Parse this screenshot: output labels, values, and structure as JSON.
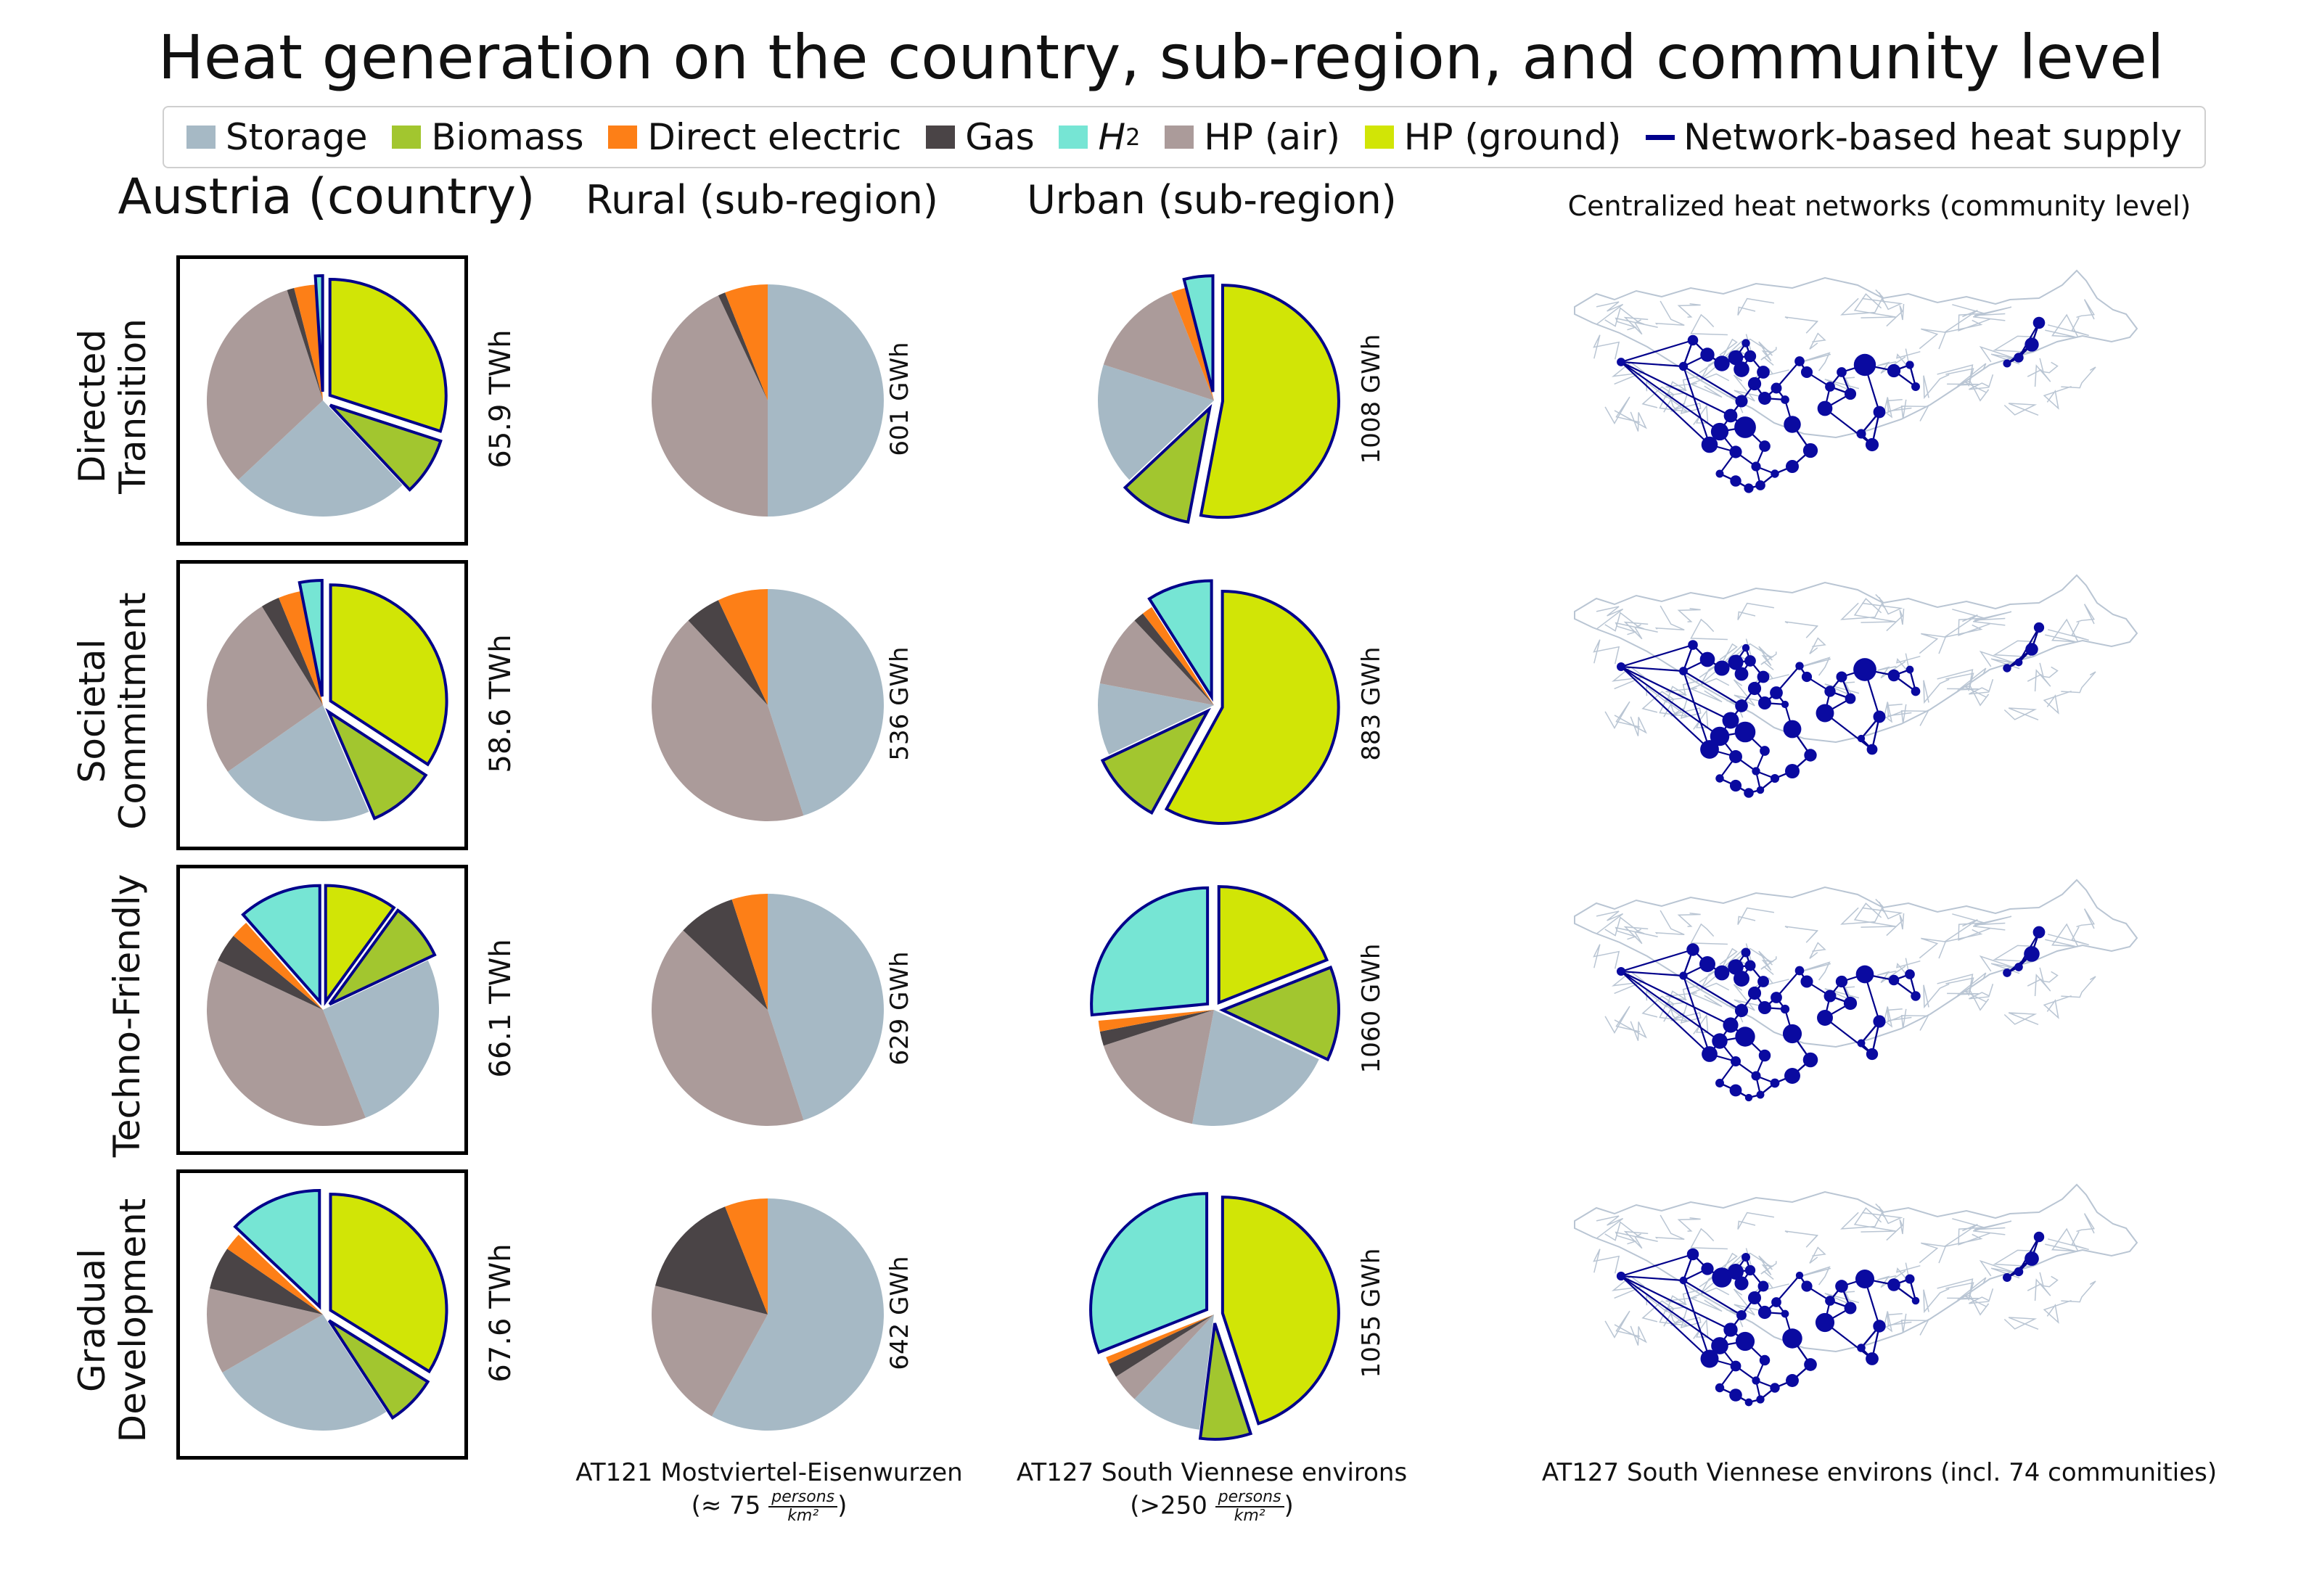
{
  "title": "Heat generation on the country, sub-region, and community level",
  "colors": {
    "Storage": "#a6b9c5",
    "Biomass": "#a2c62f",
    "Direct electric": "#fd7f17",
    "Gas": "#4a4446",
    "H2": "#76e5d4",
    "HP (air)": "#ab9b9a",
    "HP (ground)": "#d1e506",
    "network_outline": "#00008b",
    "network_node": "#0a0aa0",
    "region_border": "#b9c5d3"
  },
  "legend": [
    {
      "key": "Storage",
      "label": "Storage",
      "type": "patch",
      "color": "#a6b9c5"
    },
    {
      "key": "Biomass",
      "label": "Biomass",
      "type": "patch",
      "color": "#a2c62f"
    },
    {
      "key": "Direct electric",
      "label": "Direct electric",
      "type": "patch",
      "color": "#fd7f17"
    },
    {
      "key": "Gas",
      "label": "Gas",
      "type": "patch",
      "color": "#4a4446"
    },
    {
      "key": "H2",
      "label": "H",
      "sub": "2",
      "type": "patch",
      "color": "#76e5d4"
    },
    {
      "key": "HP (air)",
      "label": "HP (air)",
      "type": "patch",
      "color": "#ab9b9a"
    },
    {
      "key": "HP (ground)",
      "label": "HP (ground)",
      "type": "patch",
      "color": "#d1e506"
    },
    {
      "key": "network",
      "label": "Network-based heat supply",
      "type": "line",
      "color": "#00008b"
    }
  ],
  "columns": {
    "country": "Austria (country)",
    "rural": "Rural (sub-region)",
    "urban": "Urban (sub-region)",
    "networks": "Centralized heat networks (community level)"
  },
  "footnotes": {
    "rural": {
      "text": "AT121 Mostviertel-Eisenwurzen",
      "prefix": "(≈ 75 ",
      "num": "persons",
      "den": "km²",
      "suffix": ")"
    },
    "urban": {
      "text": "AT127 South Viennese environs",
      "prefix": "(>250 ",
      "num": "persons",
      "den": "km²",
      "suffix": ")"
    },
    "networks": {
      "text": "AT127 South Viennese environs (incl. 74 communities)"
    }
  },
  "scenarios": [
    {
      "label": "Directed Transition",
      "lines": [
        "Directed",
        "Transition"
      ]
    },
    {
      "label": "Societal Commitment",
      "lines": [
        "Societal",
        "Commitment"
      ]
    },
    {
      "label": "Techno-Friendly",
      "lines": [
        "Techno-Friendly"
      ]
    },
    {
      "label": "Gradual Development",
      "lines": [
        "Gradual",
        "Development"
      ]
    }
  ],
  "chart_data": [
    {
      "type": "pie",
      "title": "Austria (country)",
      "slice_order": [
        "HP (ground)",
        "Biomass",
        "Storage",
        "HP (air)",
        "Gas",
        "Direct electric",
        "H2"
      ],
      "network_based": [
        "HP (ground)",
        "Biomass",
        "H2"
      ],
      "panels": [
        {
          "scenario": "Directed Transition",
          "total": "65.9 TWh",
          "values": {
            "HP (ground)": 30,
            "Biomass": 8,
            "Storage": 25,
            "HP (air)": 32,
            "Gas": 1,
            "Direct electric": 3,
            "H2": 1
          }
        },
        {
          "scenario": "Societal Commitment",
          "total": "58.6 TWh",
          "values": {
            "HP (ground)": 33,
            "Biomass": 9,
            "Storage": 21,
            "HP (air)": 25,
            "Gas": 2.5,
            "Direct electric": 3,
            "H2": 3
          }
        },
        {
          "scenario": "Techno-Friendly",
          "total": "66.1 TWh",
          "values": {
            "HP (ground)": 10,
            "Biomass": 8,
            "Storage": 26,
            "HP (air)": 38,
            "Gas": 4,
            "Direct electric": 2.5,
            "H2": 11.5
          }
        },
        {
          "scenario": "Gradual Development",
          "total": "67.6 TWh",
          "values": {
            "HP (ground)": 34,
            "Biomass": 7,
            "Storage": 26,
            "HP (air)": 12,
            "Gas": 6,
            "Direct electric": 2.5,
            "H2": 13
          }
        }
      ]
    },
    {
      "type": "pie",
      "title": "Rural (sub-region)",
      "slice_order": [
        "Storage",
        "HP (air)",
        "Gas",
        "Direct electric"
      ],
      "network_based": [],
      "panels": [
        {
          "scenario": "Directed Transition",
          "total": "601 GWh",
          "values": {
            "Storage": 50,
            "HP (air)": 43,
            "Gas": 1,
            "Direct electric": 6
          }
        },
        {
          "scenario": "Societal Commitment",
          "total": "536 GWh",
          "values": {
            "Storage": 45,
            "HP (air)": 43,
            "Gas": 5,
            "Direct electric": 7
          }
        },
        {
          "scenario": "Techno-Friendly",
          "total": "629 GWh",
          "values": {
            "Storage": 45,
            "HP (air)": 42,
            "Gas": 8,
            "Direct electric": 5
          }
        },
        {
          "scenario": "Gradual Development",
          "total": "642 GWh",
          "values": {
            "Storage": 58,
            "HP (air)": 21,
            "Gas": 15,
            "Direct electric": 6
          }
        }
      ]
    },
    {
      "type": "pie",
      "title": "Urban (sub-region)",
      "slice_order": [
        "HP (ground)",
        "Biomass",
        "Storage",
        "HP (air)",
        "Gas",
        "Direct electric",
        "H2"
      ],
      "network_based": [
        "HP (ground)",
        "Biomass",
        "H2"
      ],
      "panels": [
        {
          "scenario": "Directed Transition",
          "total": "1008 GWh",
          "values": {
            "HP (ground)": 53,
            "Biomass": 10,
            "Storage": 17,
            "HP (air)": 14,
            "Gas": 0,
            "Direct electric": 2,
            "H2": 4
          }
        },
        {
          "scenario": "Societal Commitment",
          "total": "883 GWh",
          "values": {
            "HP (ground)": 58,
            "Biomass": 10,
            "Storage": 10,
            "HP (air)": 10,
            "Gas": 1.5,
            "Direct electric": 1.5,
            "H2": 9
          }
        },
        {
          "scenario": "Techno-Friendly",
          "total": "1060 GWh",
          "values": {
            "HP (ground)": 19,
            "Biomass": 13,
            "Storage": 21,
            "HP (air)": 17,
            "Gas": 2,
            "Direct electric": 1.5,
            "H2": 26.5
          }
        },
        {
          "scenario": "Gradual Development",
          "total": "1055 GWh",
          "values": {
            "HP (ground)": 45,
            "Biomass": 7,
            "Storage": 10,
            "HP (air)": 4,
            "Gas": 2,
            "Direct electric": 1,
            "H2": 31
          }
        }
      ]
    }
  ]
}
